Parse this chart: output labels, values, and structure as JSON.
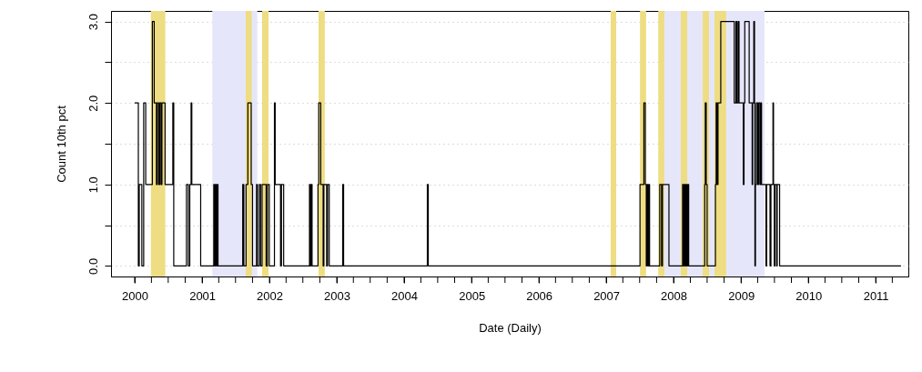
{
  "chart_data": {
    "type": "step",
    "xlabel": "Date (Daily)",
    "ylabel": "Count 10th pct",
    "xlim": [
      "1999-08-26",
      "2011-06-27"
    ],
    "ylim": [
      -0.13,
      3.13
    ],
    "xticks": [
      {
        "value": "2000-01-01",
        "label": "2000"
      },
      {
        "value": "2000-04-01",
        "label": null
      },
      {
        "value": "2000-07-01",
        "label": null
      },
      {
        "value": "2000-10-01",
        "label": null
      },
      {
        "value": "2001-01-01",
        "label": "2001"
      },
      {
        "value": "2001-04-01",
        "label": null
      },
      {
        "value": "2001-07-01",
        "label": null
      },
      {
        "value": "2001-10-01",
        "label": null
      },
      {
        "value": "2002-01-01",
        "label": "2002"
      },
      {
        "value": "2002-04-01",
        "label": null
      },
      {
        "value": "2002-07-01",
        "label": null
      },
      {
        "value": "2002-10-01",
        "label": null
      },
      {
        "value": "2003-01-01",
        "label": "2003"
      },
      {
        "value": "2003-04-01",
        "label": null
      },
      {
        "value": "2003-07-01",
        "label": null
      },
      {
        "value": "2003-10-01",
        "label": null
      },
      {
        "value": "2004-01-01",
        "label": "2004"
      },
      {
        "value": "2004-04-01",
        "label": null
      },
      {
        "value": "2004-07-01",
        "label": null
      },
      {
        "value": "2004-10-01",
        "label": null
      },
      {
        "value": "2005-01-01",
        "label": "2005"
      },
      {
        "value": "2005-04-01",
        "label": null
      },
      {
        "value": "2005-07-01",
        "label": null
      },
      {
        "value": "2005-10-01",
        "label": null
      },
      {
        "value": "2006-01-01",
        "label": "2006"
      },
      {
        "value": "2006-04-01",
        "label": null
      },
      {
        "value": "2006-07-01",
        "label": null
      },
      {
        "value": "2006-10-01",
        "label": null
      },
      {
        "value": "2007-01-01",
        "label": "2007"
      },
      {
        "value": "2007-04-01",
        "label": null
      },
      {
        "value": "2007-07-01",
        "label": null
      },
      {
        "value": "2007-10-01",
        "label": null
      },
      {
        "value": "2008-01-01",
        "label": "2008"
      },
      {
        "value": "2008-04-01",
        "label": null
      },
      {
        "value": "2008-07-01",
        "label": null
      },
      {
        "value": "2008-10-01",
        "label": null
      },
      {
        "value": "2009-01-01",
        "label": "2009"
      },
      {
        "value": "2009-04-01",
        "label": null
      },
      {
        "value": "2009-07-01",
        "label": null
      },
      {
        "value": "2009-10-01",
        "label": null
      },
      {
        "value": "2010-01-01",
        "label": "2010"
      },
      {
        "value": "2010-04-01",
        "label": null
      },
      {
        "value": "2010-07-01",
        "label": null
      },
      {
        "value": "2010-10-01",
        "label": null
      },
      {
        "value": "2011-01-01",
        "label": "2011"
      },
      {
        "value": "2011-04-01",
        "label": null
      }
    ],
    "yticks": [
      {
        "value": 0,
        "label": "0.0"
      },
      {
        "value": 0.5,
        "label": null
      },
      {
        "value": 1,
        "label": "1.0"
      },
      {
        "value": 1.5,
        "label": null
      },
      {
        "value": 2,
        "label": "2.0"
      },
      {
        "value": 2.5,
        "label": null
      },
      {
        "value": 3,
        "label": "3.0"
      }
    ],
    "grid": "y",
    "bands": [
      {
        "axis": "x",
        "from": "2001-02-25",
        "to": "2001-10-27",
        "color": "#e6e6fa"
      },
      {
        "axis": "x",
        "from": "2007-11-12",
        "to": "2009-05-08",
        "color": "#e6e6fa"
      },
      {
        "axis": "x",
        "from": "2000-03-29",
        "to": "2000-06-15",
        "color": "#eedd82"
      },
      {
        "axis": "x",
        "from": "2001-08-25",
        "to": "2001-09-27",
        "color": "#eedd82"
      },
      {
        "axis": "x",
        "from": "2001-11-22",
        "to": "2001-12-27",
        "color": "#eedd82"
      },
      {
        "axis": "x",
        "from": "2002-09-24",
        "to": "2002-10-28",
        "color": "#eedd82"
      },
      {
        "axis": "x",
        "from": "2007-01-25",
        "to": "2007-02-24",
        "color": "#eedd82"
      },
      {
        "axis": "x",
        "from": "2007-07-03",
        "to": "2007-08-05",
        "color": "#eedd82"
      },
      {
        "axis": "x",
        "from": "2007-10-10",
        "to": "2007-11-12",
        "color": "#eedd82"
      },
      {
        "axis": "x",
        "from": "2008-02-09",
        "to": "2008-03-15",
        "color": "#eedd82"
      },
      {
        "axis": "x",
        "from": "2008-06-07",
        "to": "2008-07-11",
        "color": "#eedd82"
      },
      {
        "axis": "x",
        "from": "2008-08-10",
        "to": "2008-10-12",
        "color": "#eedd82"
      }
    ],
    "x": [
      "2000-01-01",
      "2000-01-21",
      "2000-01-26",
      "2000-02-09",
      "2000-02-19",
      "2000-03-01",
      "2000-04-06",
      "2000-04-16",
      "2000-04-28",
      "2000-05-03",
      "2000-05-11",
      "2000-05-16",
      "2000-05-23",
      "2000-05-28",
      "2000-06-14",
      "2000-07-26",
      "2000-07-31",
      "2000-10-08",
      "2000-10-18",
      "2000-10-26",
      "2000-11-02",
      "2000-11-06",
      "2000-12-24",
      "2001-03-05",
      "2001-03-10",
      "2001-03-15",
      "2001-03-20",
      "2001-03-25",
      "2001-03-28",
      "2001-08-09",
      "2001-08-15",
      "2001-08-27",
      "2001-09-06",
      "2001-09-24",
      "2001-10-01",
      "2001-10-23",
      "2001-10-28",
      "2001-11-07",
      "2001-11-14",
      "2001-11-22",
      "2001-12-14",
      "2001-12-21",
      "2001-12-31",
      "2002-01-28",
      "2002-02-01",
      "2002-03-02",
      "2002-03-07",
      "2002-03-19",
      "2002-08-06",
      "2002-08-10",
      "2002-08-15",
      "2002-08-20",
      "2002-09-21",
      "2002-09-25",
      "2002-10-06",
      "2002-10-19",
      "2002-10-23",
      "2002-11-07",
      "2002-11-12",
      "2002-11-21",
      "2003-02-02",
      "2003-02-07",
      "2004-05-06",
      "2004-05-11",
      "2007-07-03",
      "2007-07-24",
      "2007-08-01",
      "2007-08-06",
      "2007-08-10",
      "2007-08-15",
      "2007-08-20",
      "2007-08-24",
      "2007-10-18",
      "2007-10-28",
      "2007-11-02",
      "2007-12-07",
      "2008-02-19",
      "2008-02-24",
      "2008-02-29",
      "2008-03-05",
      "2008-03-10",
      "2008-03-15",
      "2008-03-19",
      "2008-03-23",
      "2008-06-18",
      "2008-06-21",
      "2008-06-26",
      "2008-07-01",
      "2008-08-15",
      "2008-08-19",
      "2008-08-24",
      "2008-08-29",
      "2008-09-13",
      "2008-11-25",
      "2008-12-04",
      "2008-12-09",
      "2008-12-16",
      "2008-12-21",
      "2009-01-13",
      "2009-01-17",
      "2009-01-21",
      "2009-02-14",
      "2009-03-02",
      "2009-03-05",
      "2009-03-11",
      "2009-03-15",
      "2009-03-17",
      "2009-03-20",
      "2009-03-25",
      "2009-04-01",
      "2009-04-06",
      "2009-04-13",
      "2009-04-18",
      "2009-04-22",
      "2009-05-16",
      "2009-05-20",
      "2009-06-07",
      "2009-06-12",
      "2009-06-23",
      "2009-06-26",
      "2009-06-30",
      "2009-07-04",
      "2009-07-13",
      "2009-07-16",
      "2009-07-29",
      "2011-05-18"
    ],
    "series": [
      {
        "color": "#000000",
        "values": [
          2,
          0,
          1,
          0,
          2,
          1,
          3,
          2,
          1,
          2,
          1,
          2,
          1,
          2,
          1,
          2,
          0,
          1,
          0,
          1,
          2,
          1,
          0,
          1,
          0,
          1,
          0,
          1,
          0,
          1,
          0,
          1,
          2,
          1,
          0,
          1,
          0,
          1,
          0,
          1,
          0,
          1,
          0,
          2,
          1,
          0,
          1,
          0,
          1,
          0,
          1,
          0,
          1,
          2,
          1,
          0,
          1,
          0,
          1,
          0,
          1,
          0,
          1,
          0,
          1,
          2,
          1,
          0,
          1,
          0,
          1,
          0,
          1,
          0,
          1,
          0,
          1,
          0,
          1,
          0,
          1,
          0,
          1,
          0,
          1,
          2,
          1,
          0,
          1,
          2,
          1,
          2,
          3,
          2,
          3,
          2,
          3,
          2,
          1,
          2,
          3,
          2,
          1,
          2,
          3,
          2,
          0,
          1,
          2,
          1,
          2,
          1,
          2,
          1,
          0,
          1,
          0,
          1,
          2,
          1,
          0,
          1,
          0,
          1,
          0,
          0
        ]
      }
    ]
  }
}
